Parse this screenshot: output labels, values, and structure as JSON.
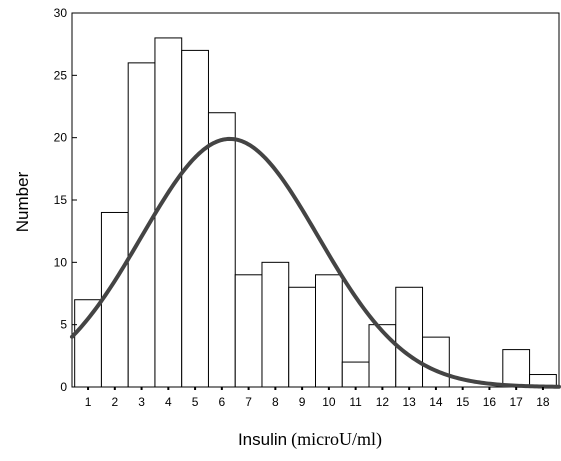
{
  "chart_data": {
    "type": "bar",
    "subtype": "histogram-with-normal-curve",
    "title": "",
    "xlabel_main": "Insulin",
    "xlabel_unit": "(microU/ml)",
    "ylabel": "Number",
    "categories": [
      "1",
      "2",
      "3",
      "4",
      "5",
      "6",
      "7",
      "8",
      "9",
      "10",
      "11",
      "12",
      "13",
      "14",
      "15",
      "16",
      "17",
      "18"
    ],
    "values": [
      7,
      14,
      26,
      28,
      27,
      22,
      9,
      10,
      8,
      9,
      2,
      5,
      8,
      4,
      0,
      0,
      3,
      1
    ],
    "yticks": [
      "0",
      "5",
      "10",
      "15",
      "20",
      "25",
      "30"
    ],
    "ylim": [
      0,
      30
    ],
    "xlim": [
      0.4,
      18.6
    ],
    "normal_curve": {
      "mean": 6.3,
      "sd": 3.3,
      "peak": 19.9
    },
    "grid": false,
    "bar_fill": "#ffffff",
    "bar_stroke": "#000000",
    "curve_color": "#444444"
  }
}
